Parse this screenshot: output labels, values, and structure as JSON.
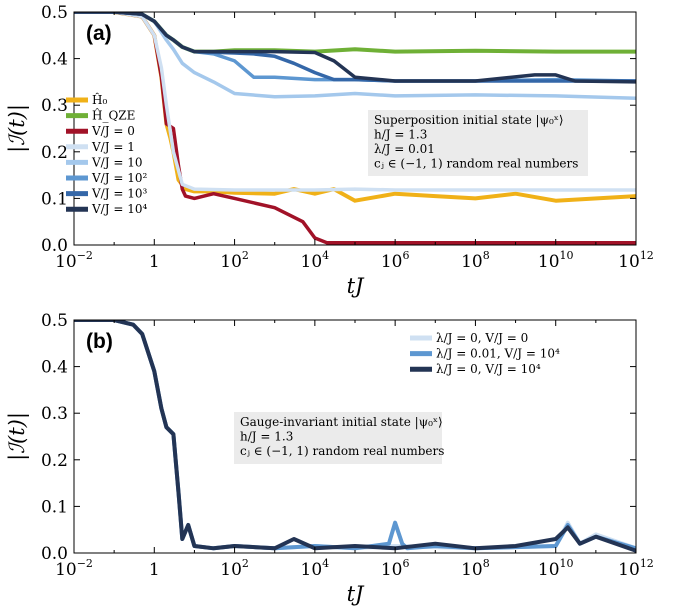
{
  "chart_data": [
    {
      "type": "line",
      "panel_label": "(a)",
      "xlabel": "tJ",
      "ylabel": "|ℐ(t)|",
      "xscale": "log",
      "xlim": [
        0.01,
        1000000000000
      ],
      "ylim": [
        0,
        0.5
      ],
      "x_ticks": [
        {
          "base": "10",
          "exp": "−2"
        },
        {
          "base": "1",
          "exp": ""
        },
        {
          "base": "10",
          "exp": "2"
        },
        {
          "base": "10",
          "exp": "4"
        },
        {
          "base": "10",
          "exp": "6"
        },
        {
          "base": "10",
          "exp": "8"
        },
        {
          "base": "10",
          "exp": "10"
        },
        {
          "base": "10",
          "exp": "12"
        }
      ],
      "y_ticks": [
        "0.0",
        "0.1",
        "0.2",
        "0.3",
        "0.4",
        "0.5"
      ],
      "legend_position": "left",
      "annotation": [
        "Superposition initial state |ψ₀ˣ⟩",
        "h/J = 1.3",
        "λ/J = 0.01",
        "cⱼ ∈ (−1, 1) random real numbers"
      ],
      "series": [
        {
          "name": "Ĥ₀",
          "color": "#f0b118",
          "width": 4,
          "x": [
            0.01,
            0.1,
            0.5,
            1,
            1.5,
            2,
            2.5,
            3,
            4,
            6,
            10,
            30,
            100,
            1000,
            3000,
            10000,
            30000,
            100000,
            1000000,
            10000000,
            100000000,
            1000000000,
            10000000000,
            1000000000000
          ],
          "y": [
            0.5,
            0.5,
            0.49,
            0.45,
            0.36,
            0.26,
            0.23,
            0.2,
            0.14,
            0.12,
            0.115,
            0.115,
            0.112,
            0.11,
            0.12,
            0.11,
            0.12,
            0.095,
            0.11,
            0.105,
            0.1,
            0.11,
            0.095,
            0.105
          ]
        },
        {
          "name": "Ĥ_QZE",
          "color": "#6fb036",
          "width": 4,
          "x": [
            0.01,
            0.1,
            0.5,
            1,
            2,
            3,
            5,
            10,
            30,
            100,
            1000,
            10000,
            100000,
            1000000,
            100000000,
            10000000000,
            1000000000000
          ],
          "y": [
            0.5,
            0.5,
            0.495,
            0.48,
            0.45,
            0.44,
            0.425,
            0.415,
            0.415,
            0.418,
            0.418,
            0.415,
            0.42,
            0.415,
            0.417,
            0.415,
            0.415
          ]
        },
        {
          "name": "V/J = 0",
          "color": "#a11228",
          "width": 3.5,
          "x": [
            0.01,
            0.1,
            0.5,
            1,
            1.5,
            2,
            3,
            4,
            5,
            6,
            10,
            30,
            100,
            1000,
            5000,
            10000,
            20000,
            100000,
            1000000,
            100000000,
            10000000000,
            1000000000000
          ],
          "y": [
            0.5,
            0.5,
            0.49,
            0.45,
            0.36,
            0.26,
            0.25,
            0.17,
            0.12,
            0.105,
            0.1,
            0.11,
            0.1,
            0.08,
            0.05,
            0.015,
            0.005,
            0.005,
            0.005,
            0.005,
            0.005,
            0.005
          ]
        },
        {
          "name": "V/J = 1",
          "color": "#cfe0f2",
          "width": 3.5,
          "x": [
            0.01,
            0.1,
            0.5,
            1,
            1.5,
            2,
            3,
            5,
            10,
            100,
            1000,
            10000,
            100000,
            1000000,
            100000000,
            10000000000,
            1000000000000
          ],
          "y": [
            0.5,
            0.5,
            0.49,
            0.45,
            0.38,
            0.3,
            0.2,
            0.13,
            0.12,
            0.118,
            0.118,
            0.118,
            0.12,
            0.118,
            0.118,
            0.118,
            0.118
          ]
        },
        {
          "name": "V/J = 10",
          "color": "#a4c8ec",
          "width": 3.5,
          "x": [
            0.01,
            0.1,
            0.5,
            1,
            2,
            3,
            5,
            10,
            30,
            100,
            1000,
            10000,
            100000,
            1000000,
            100000000,
            10000000000,
            1000000000000
          ],
          "y": [
            0.5,
            0.5,
            0.495,
            0.48,
            0.44,
            0.42,
            0.39,
            0.37,
            0.35,
            0.325,
            0.318,
            0.32,
            0.325,
            0.32,
            0.322,
            0.32,
            0.315
          ]
        },
        {
          "name": "V/J = 10²",
          "color": "#5d97d1",
          "width": 3.5,
          "x": [
            0.01,
            0.1,
            0.5,
            1,
            2,
            3,
            5,
            10,
            30,
            100,
            300,
            1000,
            10000,
            100000,
            1000000,
            100000000,
            10000000000,
            1000000000000
          ],
          "y": [
            0.5,
            0.5,
            0.495,
            0.48,
            0.45,
            0.44,
            0.425,
            0.415,
            0.41,
            0.395,
            0.36,
            0.36,
            0.355,
            0.355,
            0.352,
            0.352,
            0.355,
            0.352
          ]
        },
        {
          "name": "V/J = 10³",
          "color": "#3467a8",
          "width": 3.5,
          "x": [
            0.01,
            0.1,
            0.5,
            1,
            2,
            3,
            5,
            10,
            100,
            300,
            1000,
            3000,
            10000,
            30000,
            100000,
            1000000,
            100000000,
            10000000000,
            1000000000000
          ],
          "y": [
            0.5,
            0.5,
            0.495,
            0.48,
            0.45,
            0.44,
            0.425,
            0.415,
            0.412,
            0.41,
            0.405,
            0.39,
            0.37,
            0.355,
            0.355,
            0.352,
            0.352,
            0.352,
            0.352
          ]
        },
        {
          "name": "V/J = 10⁴",
          "color": "#233454",
          "width": 3.5,
          "x": [
            0.01,
            0.1,
            0.5,
            1,
            2,
            3,
            5,
            10,
            100,
            1000,
            10000,
            30000,
            100000,
            1000000,
            100000000,
            3000000000,
            10000000000,
            30000000000,
            1000000000000
          ],
          "y": [
            0.5,
            0.5,
            0.495,
            0.48,
            0.45,
            0.44,
            0.425,
            0.415,
            0.415,
            0.415,
            0.413,
            0.395,
            0.36,
            0.352,
            0.352,
            0.365,
            0.365,
            0.352,
            0.35
          ]
        }
      ]
    },
    {
      "type": "line",
      "panel_label": "(b)",
      "xlabel": "tJ",
      "ylabel": "|ℐ(t)|",
      "xscale": "log",
      "xlim": [
        0.01,
        1000000000000
      ],
      "ylim": [
        0,
        0.5
      ],
      "x_ticks": [
        {
          "base": "10",
          "exp": "−2"
        },
        {
          "base": "1",
          "exp": ""
        },
        {
          "base": "10",
          "exp": "2"
        },
        {
          "base": "10",
          "exp": "4"
        },
        {
          "base": "10",
          "exp": "6"
        },
        {
          "base": "10",
          "exp": "8"
        },
        {
          "base": "10",
          "exp": "10"
        },
        {
          "base": "10",
          "exp": "12"
        }
      ],
      "y_ticks": [
        "0.0",
        "0.1",
        "0.2",
        "0.3",
        "0.4",
        "0.5"
      ],
      "legend_position": "top-right",
      "annotation": [
        "Gauge-invariant initial state |ψ₀ˣ⟩",
        "h/J = 1.3",
        "cⱼ ∈ (−1, 1) random real numbers"
      ],
      "series": [
        {
          "name": "λ/J = 0, V/J = 0",
          "color": "#cfe0f2",
          "width": 4,
          "x": [
            0.01,
            0.1,
            0.3,
            0.5,
            1,
            1.5,
            2,
            3,
            4,
            5,
            7,
            10,
            30,
            100,
            1000,
            10000,
            100000,
            1000000,
            100000000,
            10000000000,
            20000000000,
            40000000000,
            100000000000,
            1000000000000
          ],
          "y": [
            0.5,
            0.5,
            0.49,
            0.47,
            0.39,
            0.31,
            0.27,
            0.255,
            0.13,
            0.03,
            0.06,
            0.015,
            0.01,
            0.015,
            0.01,
            0.015,
            0.01,
            0.015,
            0.01,
            0.015,
            0.065,
            0.02,
            0.04,
            0.01
          ]
        },
        {
          "name": "λ/J = 0.01, V/J = 10⁴",
          "color": "#5d97d1",
          "width": 4,
          "x": [
            0.01,
            0.1,
            0.3,
            0.5,
            1,
            1.5,
            2,
            3,
            4,
            5,
            7,
            10,
            30,
            100,
            1000,
            10000,
            100000,
            700000,
            1000000,
            1500000,
            2000000,
            10000000,
            100000000,
            10000000000,
            20000000000,
            40000000000,
            100000000000,
            1000000000000
          ],
          "y": [
            0.5,
            0.5,
            0.49,
            0.47,
            0.39,
            0.31,
            0.27,
            0.255,
            0.13,
            0.03,
            0.06,
            0.015,
            0.01,
            0.015,
            0.01,
            0.015,
            0.01,
            0.02,
            0.065,
            0.02,
            0.01,
            0.015,
            0.01,
            0.015,
            0.06,
            0.02,
            0.035,
            0.01
          ]
        },
        {
          "name": "λ/J = 0, V/J = 10⁴",
          "color": "#233454",
          "width": 4,
          "x": [
            0.01,
            0.1,
            0.3,
            0.5,
            1,
            1.5,
            2,
            3,
            4,
            5,
            7,
            10,
            30,
            100,
            1000,
            3000,
            10000,
            100000,
            1000000,
            10000000,
            100000000,
            1000000000,
            10000000000,
            20000000000,
            40000000000,
            100000000000,
            1000000000000
          ],
          "y": [
            0.5,
            0.5,
            0.49,
            0.47,
            0.39,
            0.31,
            0.27,
            0.255,
            0.13,
            0.03,
            0.06,
            0.015,
            0.01,
            0.015,
            0.01,
            0.03,
            0.01,
            0.015,
            0.01,
            0.02,
            0.01,
            0.015,
            0.03,
            0.055,
            0.02,
            0.035,
            0.005
          ]
        }
      ]
    }
  ]
}
